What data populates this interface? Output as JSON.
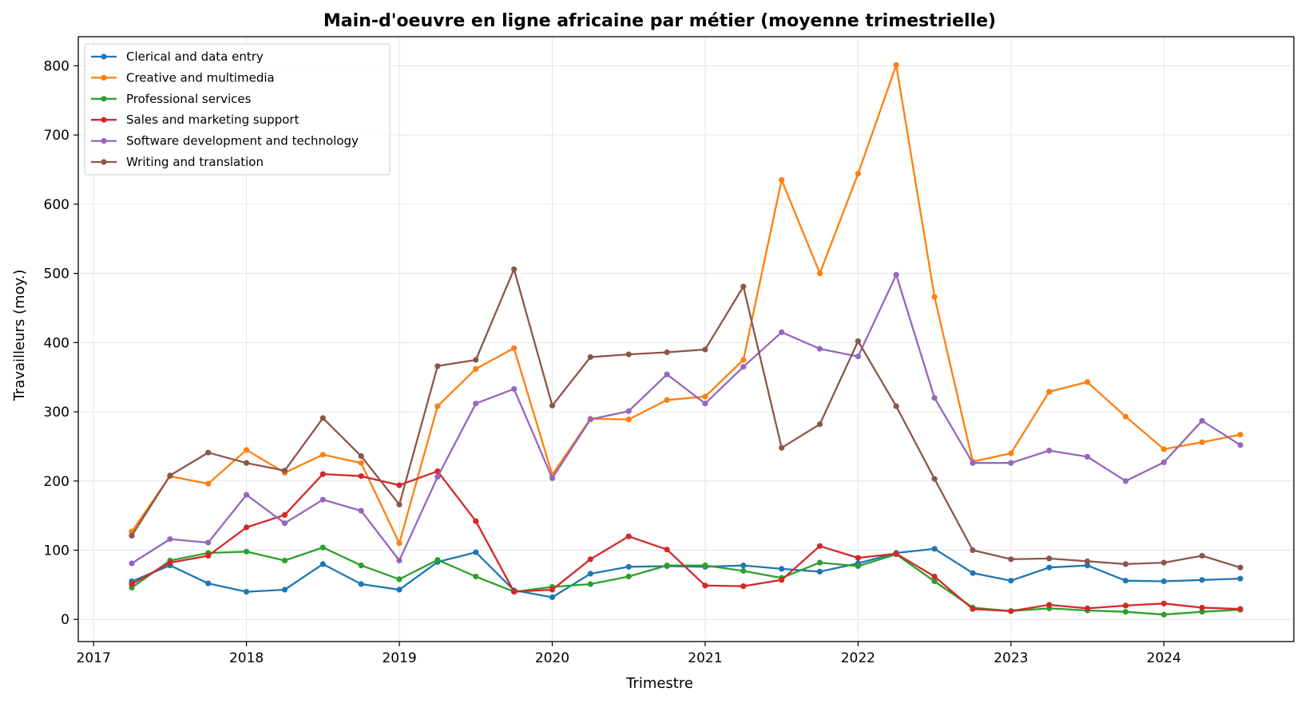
{
  "chart_data": {
    "type": "line",
    "title": "Main-d'oeuvre en ligne africaine par métier (moyenne trimestrielle)",
    "xlabel": "Trimestre",
    "ylabel": "Travailleurs (moy.)",
    "xlim": [
      2016.9,
      2024.85
    ],
    "ylim": [
      -32,
      842
    ],
    "x_ticks": [
      2017,
      2018,
      2019,
      2020,
      2021,
      2022,
      2023,
      2024
    ],
    "y_ticks": [
      0,
      100,
      200,
      300,
      400,
      500,
      600,
      700,
      800
    ],
    "grid": true,
    "legend_position": "upper-left",
    "x": [
      2017.25,
      2017.5,
      2017.75,
      2018.0,
      2018.25,
      2018.5,
      2018.75,
      2019.0,
      2019.25,
      2019.5,
      2019.75,
      2020.0,
      2020.25,
      2020.5,
      2020.75,
      2021.0,
      2021.25,
      2021.5,
      2021.75,
      2022.0,
      2022.25,
      2022.5,
      2022.75,
      2023.0,
      2023.25,
      2023.5,
      2023.75,
      2024.0,
      2024.25,
      2024.5
    ],
    "series": [
      {
        "name": "Clerical and data entry",
        "color": "#1f77b4",
        "values": [
          55,
          78,
          52,
          40,
          43,
          80,
          51,
          43,
          83,
          97,
          42,
          32,
          66,
          76,
          77,
          76,
          78,
          73,
          69,
          81,
          96,
          102,
          67,
          56,
          75,
          78,
          56,
          55,
          57,
          59
        ]
      },
      {
        "name": "Creative and multimedia",
        "color": "#ff7f0e",
        "values": [
          127,
          207,
          196,
          245,
          212,
          238,
          226,
          110,
          308,
          362,
          392,
          209,
          290,
          289,
          317,
          322,
          375,
          635,
          500,
          644,
          801,
          466,
          228,
          240,
          329,
          343,
          293,
          246,
          256,
          267
        ]
      },
      {
        "name": "Professional services",
        "color": "#2ca02c",
        "values": [
          46,
          85,
          96,
          98,
          85,
          104,
          78,
          58,
          86,
          62,
          40,
          47,
          51,
          62,
          78,
          78,
          70,
          60,
          82,
          77,
          94,
          55,
          17,
          12,
          16,
          13,
          11,
          7,
          11,
          14
        ]
      },
      {
        "name": "Sales and marketing support",
        "color": "#d62728",
        "values": [
          51,
          82,
          92,
          133,
          151,
          210,
          207,
          194,
          214,
          142,
          40,
          43,
          87,
          120,
          101,
          49,
          48,
          57,
          106,
          89,
          95,
          62,
          15,
          12,
          21,
          16,
          20,
          23,
          17,
          15
        ]
      },
      {
        "name": "Software development and technology",
        "color": "#9467bd",
        "values": [
          81,
          116,
          111,
          180,
          139,
          173,
          157,
          85,
          206,
          312,
          333,
          204,
          289,
          301,
          354,
          312,
          365,
          415,
          391,
          380,
          498,
          320,
          226,
          226,
          244,
          235,
          200,
          227,
          287,
          252
        ]
      },
      {
        "name": "Writing and translation",
        "color": "#8c564b",
        "values": [
          121,
          208,
          241,
          226,
          215,
          291,
          236,
          166,
          366,
          375,
          506,
          309,
          379,
          383,
          386,
          390,
          481,
          248,
          282,
          402,
          308,
          203,
          100,
          87,
          88,
          84,
          80,
          82,
          92,
          75
        ]
      }
    ]
  }
}
